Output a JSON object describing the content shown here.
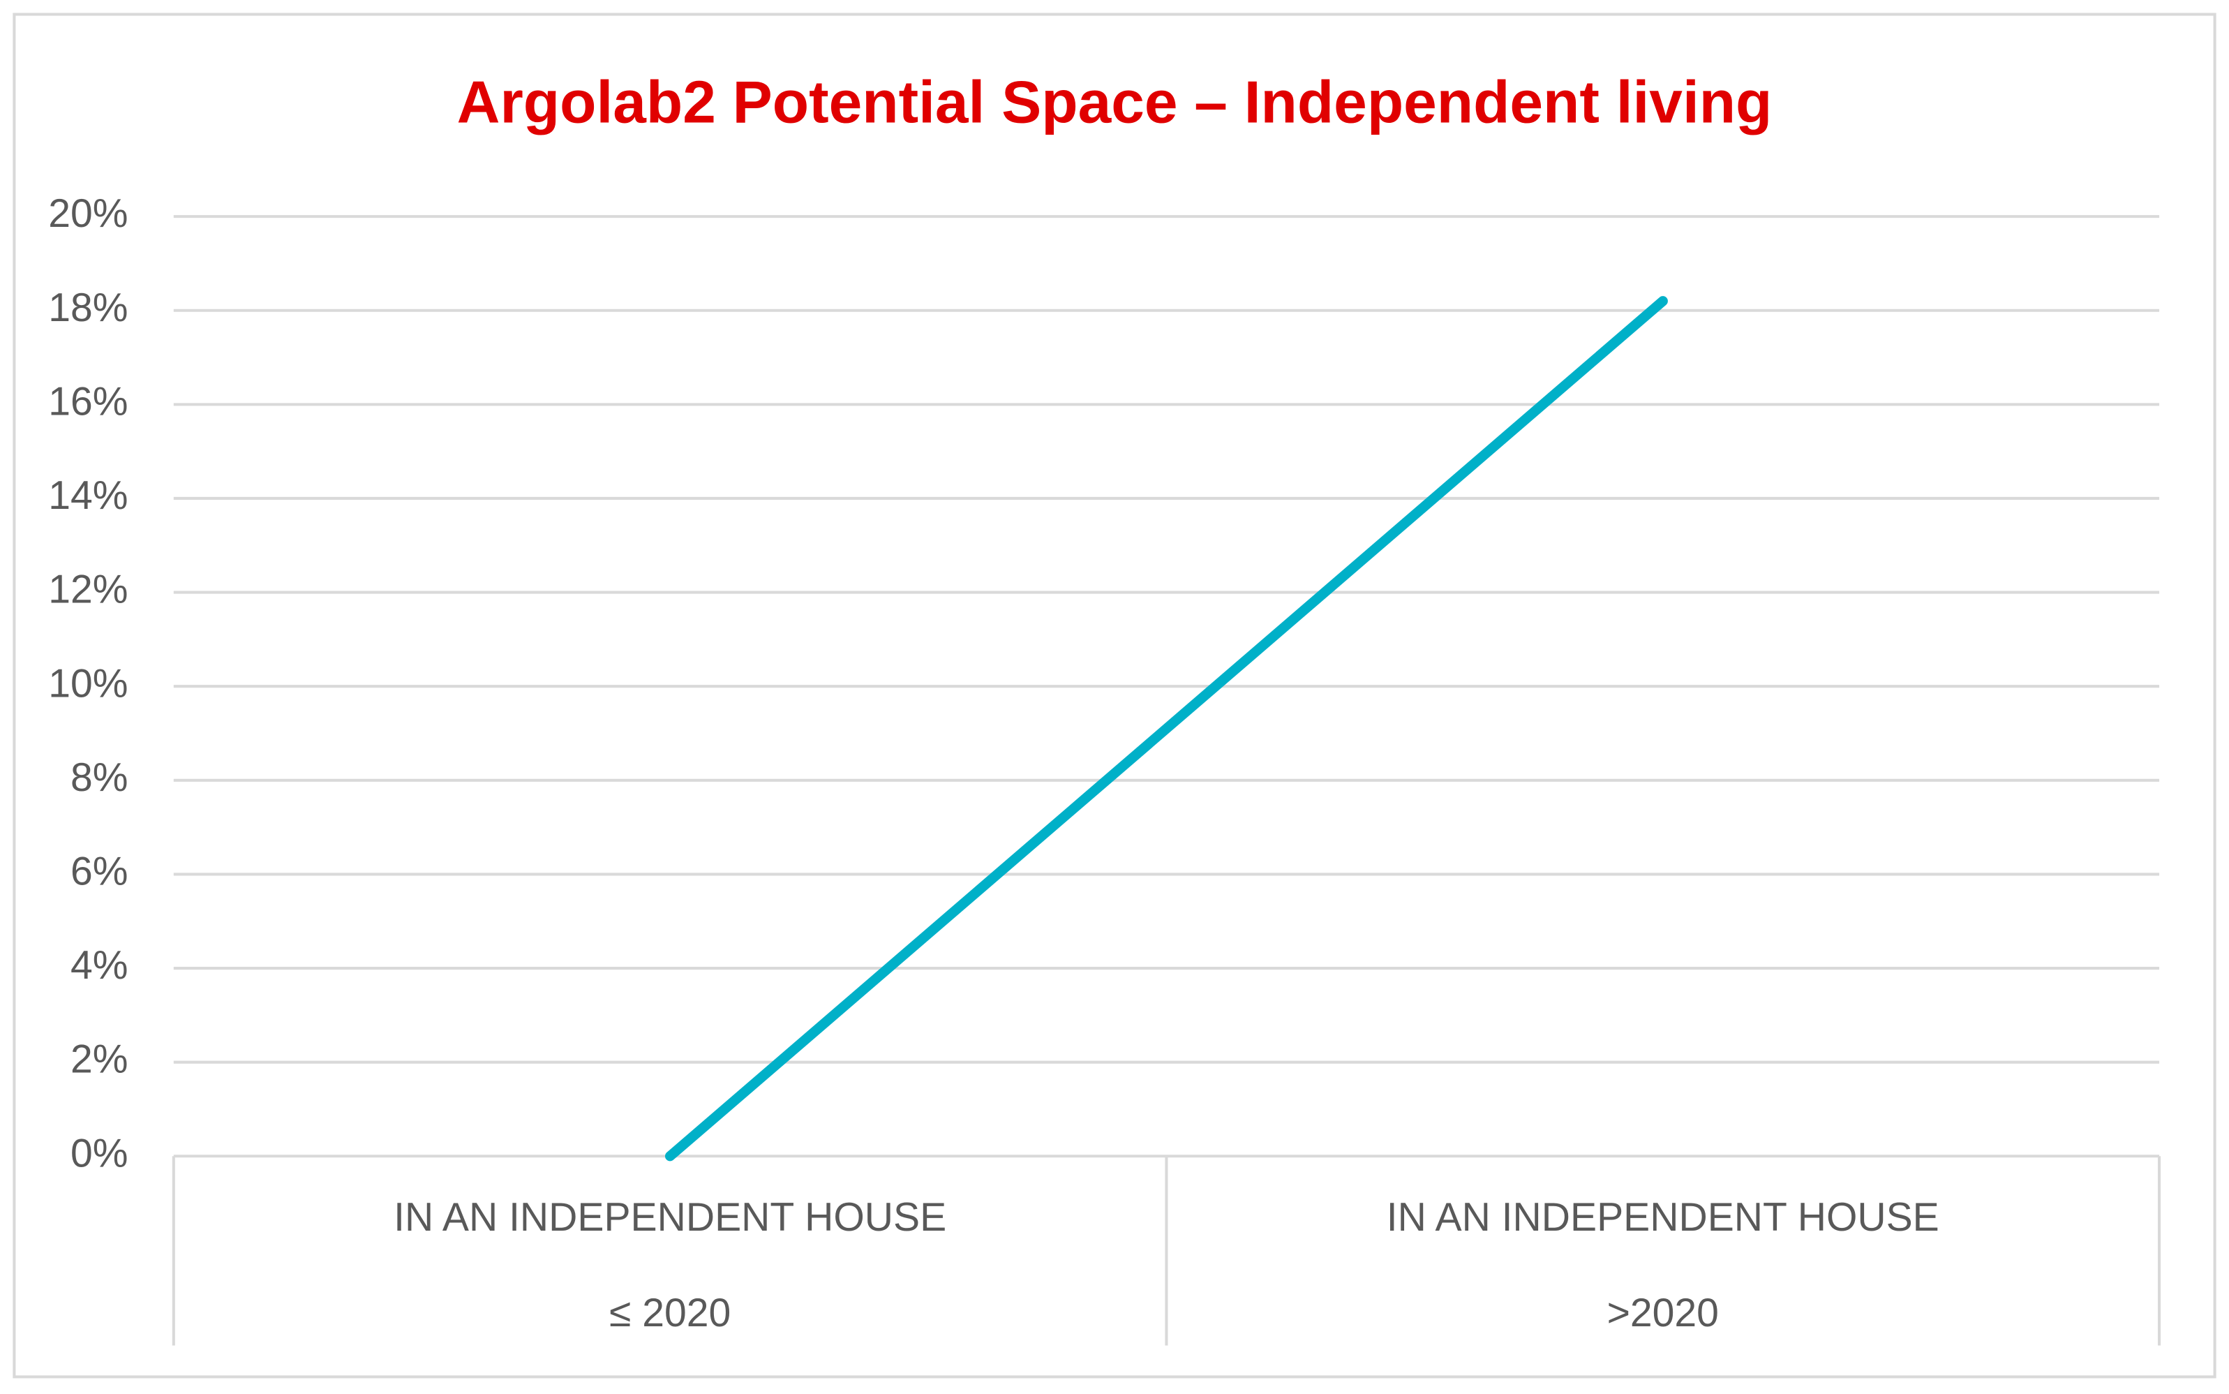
{
  "chart_data": {
    "type": "line",
    "title": "Argolab2 Potential Space – Independent living",
    "categories": [
      "IN AN INDEPENDENT HOUSE",
      "IN AN INDEPENDENT HOUSE"
    ],
    "category_groups": [
      "≤ 2020",
      ">2020"
    ],
    "series": [
      {
        "name": "Independent living",
        "color": "#00b0c8",
        "values": [
          0,
          18.2
        ]
      }
    ],
    "ylim": [
      0,
      20
    ],
    "yticks": [
      {
        "value": 0,
        "label": "0%"
      },
      {
        "value": 2,
        "label": "2%"
      },
      {
        "value": 4,
        "label": "4%"
      },
      {
        "value": 6,
        "label": "6%"
      },
      {
        "value": 8,
        "label": "8%"
      },
      {
        "value": 10,
        "label": "10%"
      },
      {
        "value": 12,
        "label": "12%"
      },
      {
        "value": 14,
        "label": "14%"
      },
      {
        "value": 16,
        "label": "16%"
      },
      {
        "value": 18,
        "label": "18%"
      },
      {
        "value": 20,
        "label": "20%"
      }
    ],
    "grid": true
  }
}
